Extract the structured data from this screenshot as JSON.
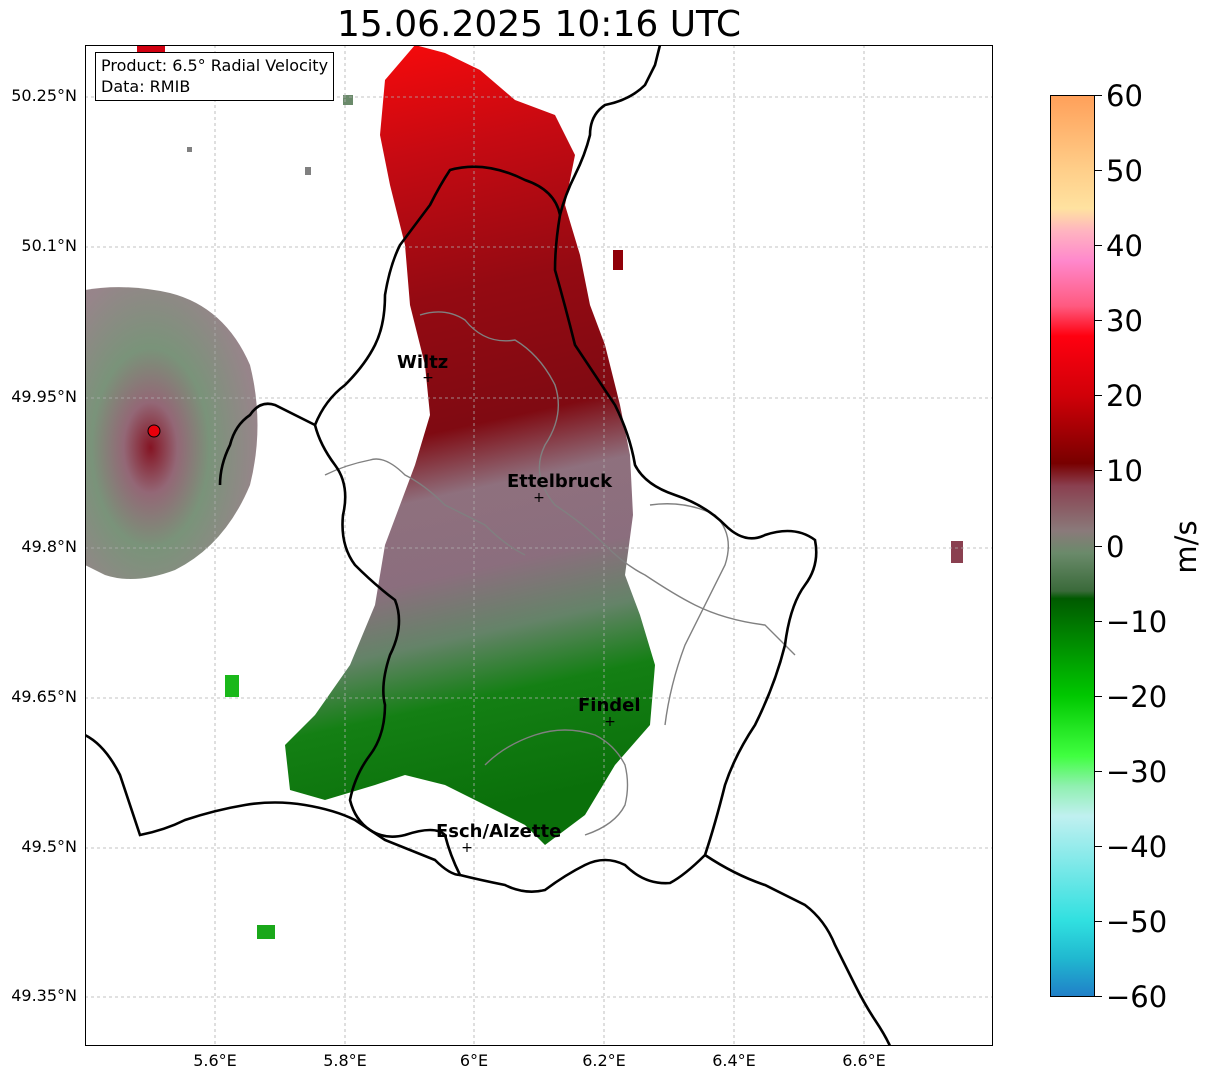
{
  "title": "15.06.2025 10:16 UTC",
  "info": {
    "line1": "Product: 6.5° Radial Velocity",
    "line2": "Data: RMIB"
  },
  "axes": {
    "lat_ticks": [
      "50.25°N",
      "50.1°N",
      "49.95°N",
      "49.8°N",
      "49.65°N",
      "49.5°N",
      "49.35°N"
    ],
    "lon_ticks": [
      "5.6°E",
      "5.8°E",
      "6°E",
      "6.2°E",
      "6.4°E",
      "6.6°E"
    ],
    "grid": true
  },
  "cities": [
    {
      "name": "Wiltz",
      "marker": "+"
    },
    {
      "name": "Ettelbruck",
      "marker": "+"
    },
    {
      "name": "Findel",
      "marker": "+"
    },
    {
      "name": "Esch/Alzette",
      "marker": "+"
    }
  ],
  "radar": {
    "marker_color": "#e8000b"
  },
  "colorbar": {
    "unit": "m/s",
    "ticks": [
      "60",
      "50",
      "40",
      "30",
      "20",
      "10",
      "0",
      "−10",
      "−20",
      "−30",
      "−40",
      "−50",
      "−60"
    ],
    "range": [
      -60,
      60
    ],
    "stops": [
      {
        "v": 60,
        "c": "#ffa05a"
      },
      {
        "v": 50,
        "c": "#ffcf8a"
      },
      {
        "v": 45,
        "c": "#ffe2a0"
      },
      {
        "v": 42,
        "c": "#ffb4c0"
      },
      {
        "v": 38,
        "c": "#ff88cc"
      },
      {
        "v": 32,
        "c": "#ff5a80"
      },
      {
        "v": 28,
        "c": "#ff0010"
      },
      {
        "v": 20,
        "c": "#d00008"
      },
      {
        "v": 11,
        "c": "#780000"
      },
      {
        "v": 8,
        "c": "#8a4050"
      },
      {
        "v": 2,
        "c": "#8a7a7a"
      },
      {
        "v": -1,
        "c": "#6a8a6a"
      },
      {
        "v": -6,
        "c": "#3a6a3a"
      },
      {
        "v": -7,
        "c": "#005a00"
      },
      {
        "v": -20,
        "c": "#00c800"
      },
      {
        "v": -28,
        "c": "#40ff40"
      },
      {
        "v": -32,
        "c": "#90f0b0"
      },
      {
        "v": -36,
        "c": "#c0f0f0"
      },
      {
        "v": -50,
        "c": "#30e0e0"
      },
      {
        "v": -55,
        "c": "#20b8d0"
      },
      {
        "v": -60,
        "c": "#2080c8"
      }
    ]
  },
  "map_colors": {
    "border_country": "#000000",
    "border_canton": "#808080",
    "grid": "#b0b0b0"
  }
}
